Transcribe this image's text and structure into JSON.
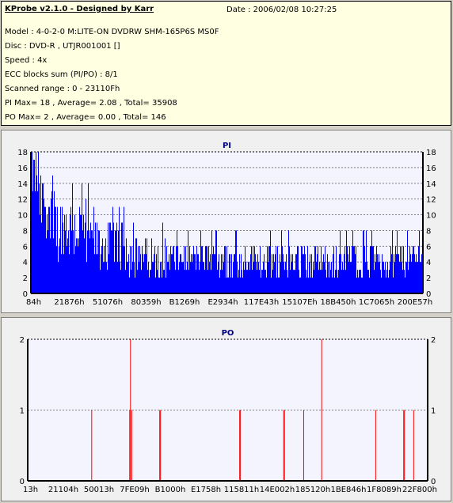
{
  "header": {
    "title": "KProbe v2.1.0 - Designed by Karr",
    "date": "Date : 2006/02/08 10:27:25",
    "lines": [
      "Model : 4-0-2-0 M:LITE-ON DVDRW SHM-165P6S MS0F",
      "Disc : DVD-R , UTJR001001 []",
      "Speed : 4x",
      "ECC blocks sum (PI/PO) : 8/1",
      "Scanned range : 0 - 23110Fh",
      "PI Max= 18 , Average= 2.08 , Total= 35908",
      "PO Max= 2 , Average= 0.00 , Total= 146"
    ]
  },
  "chart_data": [
    {
      "type": "bar",
      "title": "PI",
      "ylim": [
        0,
        18
      ],
      "yticks": [
        "0",
        "2",
        "4",
        "6",
        "8",
        "10",
        "12",
        "14",
        "16",
        "18"
      ],
      "xticks": [
        "84h",
        "21876h",
        "51076h",
        "80359h",
        "B1269h",
        "E2934h",
        "117E43h",
        "15107Eh",
        "18B450h",
        "1C7065h",
        "200E57h"
      ],
      "grid": "dashed horizontal",
      "color": "#0000ff",
      "profile_description_values": {
        "segments": [
          {
            "x_from_frac": 0.0,
            "x_to_frac": 0.02,
            "max": 18,
            "base": 12
          },
          {
            "x_from_frac": 0.02,
            "x_to_frac": 0.06,
            "max": 15,
            "base": 8
          },
          {
            "x_from_frac": 0.06,
            "x_to_frac": 0.15,
            "max": 12,
            "base": 5
          },
          {
            "x_from_frac": 0.15,
            "x_to_frac": 0.25,
            "max": 9,
            "base": 4
          },
          {
            "x_from_frac": 0.25,
            "x_to_frac": 0.35,
            "max": 7,
            "base": 3
          },
          {
            "x_from_frac": 0.35,
            "x_to_frac": 1.0,
            "max": 6,
            "base": 3
          }
        ]
      }
    },
    {
      "type": "bar",
      "title": "PO",
      "ylim": [
        0,
        2
      ],
      "yticks": [
        "0",
        "1",
        "2"
      ],
      "xticks": [
        "13h",
        "21104h",
        "50013h",
        "7FE09h",
        "B1000h",
        "E1758h",
        "115811h",
        "14E002h",
        "185120h",
        "1BE846h",
        "1F8089h",
        "22F800h"
      ],
      "grid": "dashed horizontal",
      "color": "#ff0000",
      "points": [
        {
          "x_frac": 0.16,
          "value": 1
        },
        {
          "x_frac": 0.255,
          "value": 1
        },
        {
          "x_frac": 0.257,
          "value": 2
        },
        {
          "x_frac": 0.26,
          "value": 1
        },
        {
          "x_frac": 0.33,
          "value": 1
        },
        {
          "x_frac": 0.332,
          "value": 1
        },
        {
          "x_frac": 0.53,
          "value": 1
        },
        {
          "x_frac": 0.532,
          "value": 1
        },
        {
          "x_frac": 0.64,
          "value": 1
        },
        {
          "x_frac": 0.642,
          "value": 1
        },
        {
          "x_frac": 0.69,
          "value": 1
        },
        {
          "x_frac": 0.735,
          "value": 2
        },
        {
          "x_frac": 0.87,
          "value": 1
        },
        {
          "x_frac": 0.94,
          "value": 1
        },
        {
          "x_frac": 0.942,
          "value": 1
        },
        {
          "x_frac": 0.965,
          "value": 1
        }
      ]
    }
  ]
}
